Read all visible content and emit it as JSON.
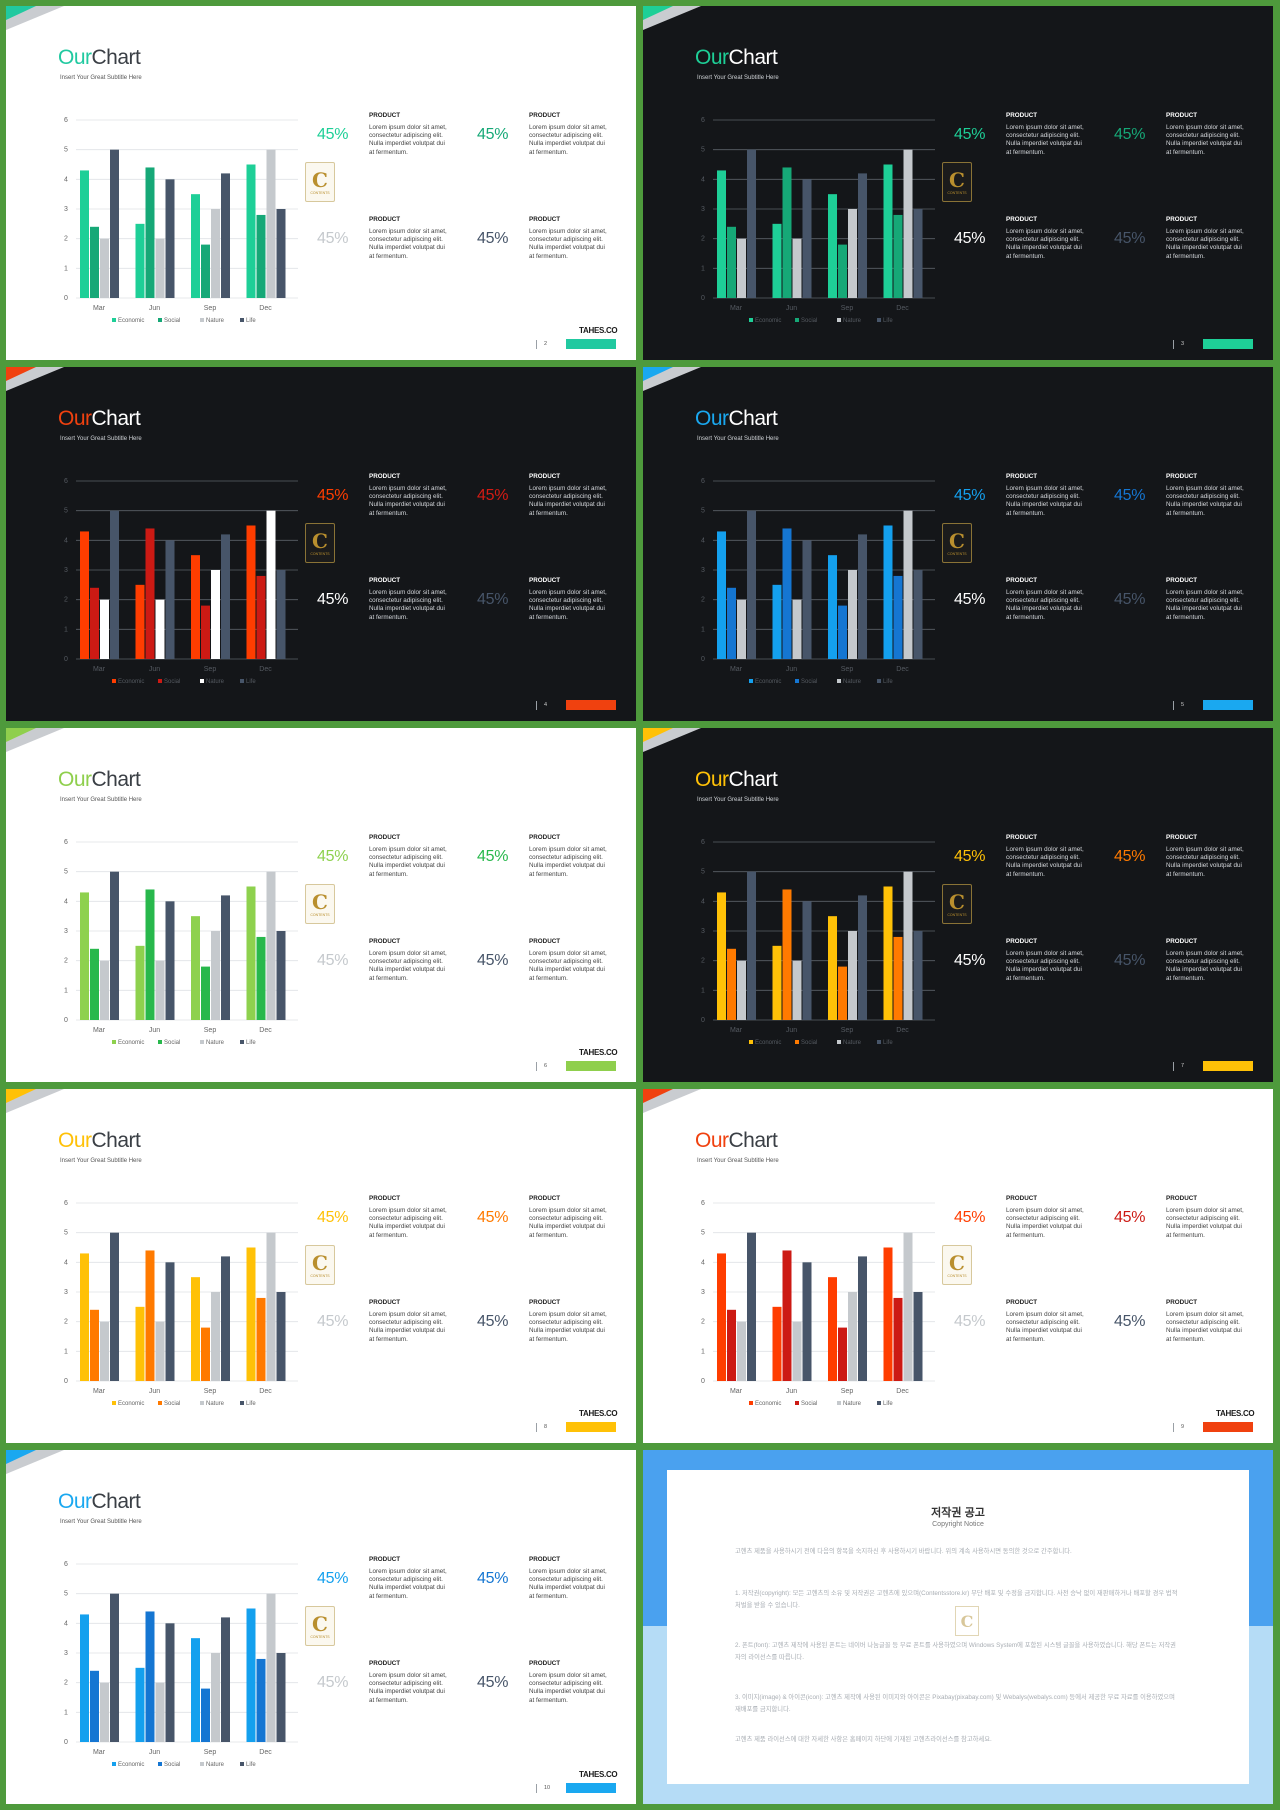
{
  "common": {
    "title_part1": "Our",
    "title_part2": "Chart",
    "subtitle": "Insert Your Great Subtitle Here",
    "item_title": "PRODUCT",
    "item_desc": "Lorem ipsum dolor sit amet, consectetur adipiscing elit. Nulla imperdiet volutpat dui at fermentum.",
    "logo_letter": "C",
    "logo_text": "CONTENTS",
    "brand": "TAHES.CO"
  },
  "chart_data": {
    "type": "bar",
    "categories": [
      "Mar",
      "Jun",
      "Sep",
      "Dec"
    ],
    "series": [
      {
        "name": "Economic",
        "values": [
          4.3,
          2.5,
          3.5,
          4.5
        ]
      },
      {
        "name": "Social",
        "values": [
          2.4,
          4.4,
          1.8,
          2.8
        ]
      },
      {
        "name": "Nature",
        "values": [
          2.0,
          2.0,
          3.0,
          5.0
        ]
      },
      {
        "name": "Life",
        "values": [
          5.0,
          4.0,
          4.2,
          3.0
        ]
      }
    ],
    "ylim": [
      0,
      6
    ],
    "yticks": [
      0,
      1,
      2,
      3,
      4,
      5,
      6
    ],
    "grid": true,
    "legend": "bottom"
  },
  "slides": [
    {
      "theme": "light",
      "page": "2",
      "accent": "#21c9a0",
      "show_brand": true,
      "series_colors": [
        "#1ecf97",
        "#16a877",
        "#c5c9cd",
        "#475569"
      ],
      "pct_values": [
        "45%",
        "45%",
        "45%",
        "45%"
      ],
      "pct_colors": [
        "#1ecf97",
        "#16a877",
        "#c5c9cd",
        "#475569"
      ]
    },
    {
      "theme": "dark",
      "page": "3",
      "accent": "#1ecf97",
      "show_brand": false,
      "series_colors": [
        "#1ecf97",
        "#16a877",
        "#c5c9cd",
        "#475569"
      ],
      "pct_values": [
        "45%",
        "45%",
        "45%",
        "45%"
      ],
      "pct_colors": [
        "#1ecf97",
        "#16a877",
        "#ffffff",
        "#475569"
      ]
    },
    {
      "theme": "dark",
      "page": "4",
      "accent": "#f0410f",
      "show_brand": false,
      "series_colors": [
        "#ff3d00",
        "#cc1a14",
        "#ffffff",
        "#475569"
      ],
      "pct_values": [
        "45%",
        "45%",
        "45%",
        "45%"
      ],
      "pct_colors": [
        "#ff3d00",
        "#d41b14",
        "#ffffff",
        "#475569"
      ]
    },
    {
      "theme": "dark",
      "page": "5",
      "accent": "#1aa8f0",
      "show_brand": false,
      "series_colors": [
        "#14a0ee",
        "#1576d2",
        "#c5c9cd",
        "#475569"
      ],
      "pct_values": [
        "45%",
        "45%",
        "45%",
        "45%"
      ],
      "pct_colors": [
        "#14a0ee",
        "#1576d2",
        "#ffffff",
        "#475569"
      ]
    },
    {
      "theme": "light",
      "page": "6",
      "accent": "#8fcf4d",
      "show_brand": true,
      "series_colors": [
        "#8ed14e",
        "#28b84c",
        "#c5c9cd",
        "#475569"
      ],
      "pct_values": [
        "45%",
        "45%",
        "45%",
        "45%"
      ],
      "pct_colors": [
        "#8ed14e",
        "#28b84c",
        "#c5c9cd",
        "#475569"
      ]
    },
    {
      "theme": "dark",
      "page": "7",
      "accent": "#ffc107",
      "show_brand": false,
      "series_colors": [
        "#ffc107",
        "#ff7a00",
        "#c5c9cd",
        "#475569"
      ],
      "pct_values": [
        "45%",
        "45%",
        "45%",
        "45%"
      ],
      "pct_colors": [
        "#ffc107",
        "#ff7a00",
        "#ffffff",
        "#475569"
      ]
    },
    {
      "theme": "light",
      "page": "8",
      "accent": "#ffc107",
      "show_brand": true,
      "series_colors": [
        "#ffc107",
        "#ff7a00",
        "#c5c9cd",
        "#475569"
      ],
      "pct_values": [
        "45%",
        "45%",
        "45%",
        "45%"
      ],
      "pct_colors": [
        "#ffc107",
        "#ff7a00",
        "#c5c9cd",
        "#475569"
      ]
    },
    {
      "theme": "light",
      "page": "9",
      "accent": "#f0410f",
      "show_brand": true,
      "series_colors": [
        "#ff3d00",
        "#cc1a14",
        "#c5c9cd",
        "#475569"
      ],
      "pct_values": [
        "45%",
        "45%",
        "45%",
        "45%"
      ],
      "pct_colors": [
        "#ff3d00",
        "#cc1a14",
        "#c5c9cd",
        "#475569"
      ]
    },
    {
      "theme": "light",
      "page": "10",
      "accent": "#1aa8f0",
      "show_brand": true,
      "series_colors": [
        "#14a0ee",
        "#1576d2",
        "#c5c9cd",
        "#475569"
      ],
      "pct_values": [
        "45%",
        "45%",
        "45%",
        "45%"
      ],
      "pct_colors": [
        "#14a0ee",
        "#1576d2",
        "#c5c9cd",
        "#475569"
      ]
    }
  ],
  "notice": {
    "title": "저작권 공고",
    "subtitle": "Copyright Notice",
    "paragraphs": [
      "고헨츠 제품을 사용하시기 전에 다음의 항목을 숙지하신 후 사용하시기 바랍니다. 위의 계속 사용하시면 동의한 것으로 간주합니다.",
      "1. 저작권(copyright): 모든 고헨츠의 소유 및 저작권은 고헨츠에 있으며(Contentsstore.kr) 무단 배포 및 수정을 금지합니다. 사전 승낙 없이 재판매하거나 배포할 경우 법적 처벌을 받을 수 있습니다.",
      "2. 폰트(font): 고헨츠 제작에 사용된 폰트는 네이버 나눔글꼴 등 무료 폰트를 사용하였으며 Windows System에 포함된 시스템 글꼴을 사용하였습니다. 해당 폰트는 저작권자의 라이선스를 따릅니다.",
      "3. 이미지(image) & 아이콘(icon): 고헨츠 제작에 사용된 이미지와 아이콘은 Pixabay(pixabay.com) 및 Webalys(webalys.com) 등에서 제공한 무료 자료를 이용하였으며 재배포를 금지합니다.",
      "고헨츠 제품 라이선스에 대한 자세한 사항은 홈페이지 하단에 기재된 고헨츠라이선스를 참고하세요."
    ]
  }
}
